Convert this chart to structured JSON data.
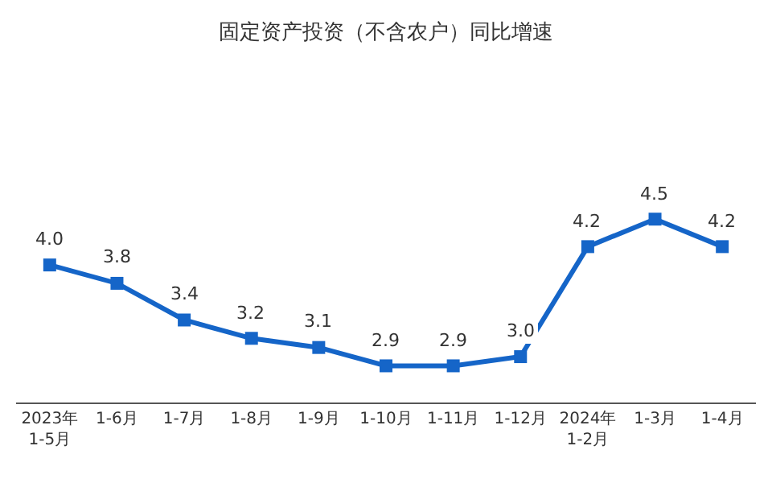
{
  "chart_data": {
    "type": "line",
    "title": "固定资产投资（不含农户）同比增速",
    "categories": [
      "2023年\n1-5月",
      "1-6月",
      "1-7月",
      "1-8月",
      "1-9月",
      "1-10月",
      "1-11月",
      "1-12月",
      "2024年\n1-2月",
      "1-3月",
      "1-4月"
    ],
    "series": [
      {
        "color": "#1565c8",
        "values": [
          4.0,
          3.8,
          3.4,
          3.2,
          3.1,
          2.9,
          2.9,
          3.0,
          4.2,
          4.5,
          4.2
        ],
        "value_labels": [
          "4.0",
          "3.8",
          "3.4",
          "3.2",
          "3.1",
          "2.9",
          "2.9",
          "3.0",
          "4.2",
          "4.5",
          "4.2"
        ]
      }
    ],
    "marker": "square",
    "line_style": "solid"
  }
}
